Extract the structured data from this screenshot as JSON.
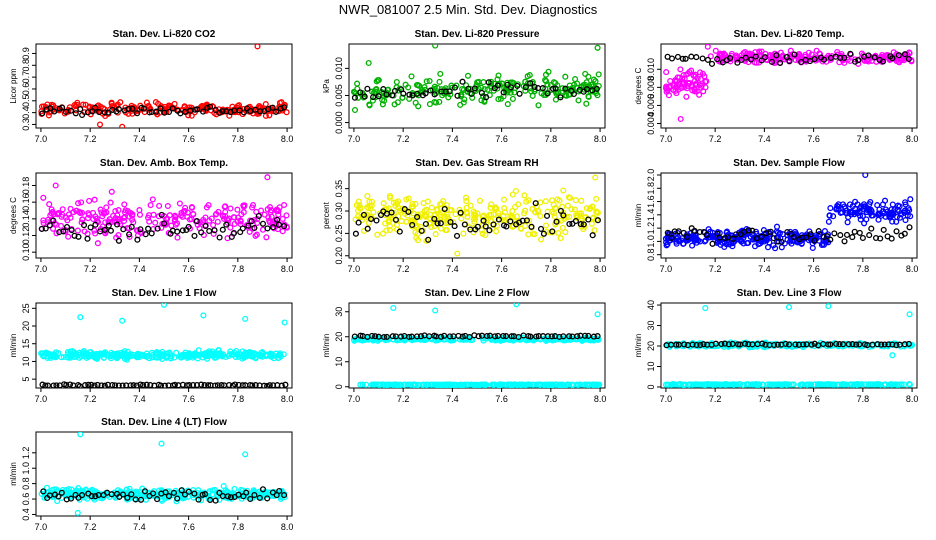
{
  "title": "NWR_081007  2.5 Min. Std. Dev. Diagnostics",
  "colors": {
    "reference": "#000000"
  },
  "chart_data": [
    {
      "type": "scatter",
      "title": "Stan. Dev. Li-820 CO2",
      "xlabel": "",
      "ylabel": "Licor ppm",
      "color": "#ff0000",
      "xlim": [
        6.98,
        8.02
      ],
      "ylim": [
        0.27,
        0.98
      ],
      "xticks": [
        "7.0",
        "7.2",
        "7.4",
        "7.6",
        "7.8",
        "8.0"
      ],
      "yticks": [
        "0.3",
        "0.4",
        "0.5",
        "0.6",
        "0.7",
        "0.8",
        "0.9"
      ],
      "bands": [
        {
          "y": 0.43,
          "spread": 0.05,
          "n": 220
        }
      ],
      "ref_band": {
        "y": 0.42,
        "spread": 0.035,
        "n": 60
      },
      "outliers": [
        {
          "x": 7.88,
          "y": 0.96
        },
        {
          "x": 7.33,
          "y": 0.28
        },
        {
          "x": 7.24,
          "y": 0.3
        }
      ]
    },
    {
      "type": "scatter",
      "title": "Stan. Dev. Li-820 Pressure",
      "xlabel": "",
      "ylabel": "kPa",
      "color": "#00b000",
      "xlim": [
        6.98,
        8.02
      ],
      "ylim": [
        -0.001,
        0.0145
      ],
      "xticks": [
        "7.0",
        "7.2",
        "7.4",
        "7.6",
        "7.8",
        "8.0"
      ],
      "yticks": [
        "0.000",
        "0.005",
        "0.010"
      ],
      "bands": [
        {
          "y": 0.005,
          "spread": 0.0025,
          "n": 240,
          "trend": 0.0018
        }
      ],
      "ref_band": {
        "y": 0.005,
        "spread": 0.0015,
        "n": 55,
        "trend": 0.0015
      },
      "outliers": [
        {
          "x": 7.33,
          "y": 0.0142
        },
        {
          "x": 7.99,
          "y": 0.0138
        },
        {
          "x": 7.06,
          "y": 0.011
        }
      ]
    },
    {
      "type": "scatter",
      "title": "Stan. Dev. Li-820 Temp.",
      "xlabel": "",
      "ylabel": "degrees C",
      "color": "#ff00ff",
      "xlim": [
        6.98,
        8.02
      ],
      "ylim": [
        0.0035,
        0.0128
      ],
      "xticks": [
        "7.0",
        "7.2",
        "7.4",
        "7.6",
        "7.8",
        "8.0"
      ],
      "yticks": [
        "0.004",
        "0.006",
        "0.008",
        "0.010"
      ],
      "bands": [
        {
          "y": 0.0113,
          "spread": 0.0006,
          "n": 220,
          "from": 7.18
        },
        {
          "y": 0.0085,
          "spread": 0.0013,
          "n": 70,
          "to": 7.17
        }
      ],
      "ref_band": {
        "y": 0.0112,
        "spread": 0.0006,
        "n": 50
      },
      "outliers": [
        {
          "x": 7.06,
          "y": 0.0045
        },
        {
          "x": 7.17,
          "y": 0.0125
        }
      ]
    },
    {
      "type": "scatter",
      "title": "Stan. Dev. Amb. Box Temp.",
      "xlabel": "",
      "ylabel": "degrees C",
      "color": "#ff00ff",
      "xlim": [
        6.98,
        8.02
      ],
      "ylim": [
        0.093,
        0.195
      ],
      "xticks": [
        "7.0",
        "7.2",
        "7.4",
        "7.6",
        "7.8",
        "8.0"
      ],
      "yticks": [
        "0.10",
        "0.12",
        "0.14",
        "0.16",
        "0.18"
      ],
      "bands": [
        {
          "y": 0.14,
          "spread": 0.022,
          "n": 260
        }
      ],
      "ref_band": {
        "y": 0.128,
        "spread": 0.012,
        "n": 60
      },
      "outliers": [
        {
          "x": 7.92,
          "y": 0.19
        },
        {
          "x": 7.06,
          "y": 0.18
        }
      ]
    },
    {
      "type": "scatter",
      "title": "Stan. Dev. Gas Stream RH",
      "xlabel": "",
      "ylabel": "percent",
      "color": "#f0f000",
      "xlim": [
        6.98,
        8.02
      ],
      "ylim": [
        0.195,
        0.385
      ],
      "xticks": [
        "7.0",
        "7.2",
        "7.4",
        "7.6",
        "7.8",
        "8.0"
      ],
      "yticks": [
        "0.20",
        "0.25",
        "0.30",
        "0.35"
      ],
      "bands": [
        {
          "y": 0.29,
          "spread": 0.045,
          "n": 300
        }
      ],
      "ref_band": {
        "y": 0.275,
        "spread": 0.03,
        "n": 60
      },
      "outliers": [
        {
          "x": 7.42,
          "y": 0.205
        },
        {
          "x": 7.98,
          "y": 0.375
        }
      ]
    },
    {
      "type": "scatter",
      "title": "Stan. Dev. Sample Flow",
      "xlabel": "",
      "ylabel": "ml/min",
      "color": "#0000ff",
      "xlim": [
        6.98,
        8.02
      ],
      "ylim": [
        0.75,
        2.03
      ],
      "xticks": [
        "7.0",
        "7.2",
        "7.4",
        "7.6",
        "7.8",
        "8.0"
      ],
      "yticks": [
        "0.8",
        "1.0",
        "1.2",
        "1.4",
        "1.6",
        "1.8",
        "2.0"
      ],
      "bands": [
        {
          "y": 1.05,
          "spread": 0.12,
          "n": 260,
          "to": 7.66
        },
        {
          "y": 1.45,
          "spread": 0.16,
          "n": 110,
          "from": 7.66
        }
      ],
      "ref_band": {
        "y": 1.1,
        "spread": 0.12,
        "n": 60
      },
      "outliers": [
        {
          "x": 7.81,
          "y": 2.0
        }
      ]
    },
    {
      "type": "scatter",
      "title": "Stan. Dev. Line 1 Flow",
      "xlabel": "",
      "ylabel": "ml/min",
      "color": "#00ffff",
      "xlim": [
        6.98,
        8.02
      ],
      "ylim": [
        2.5,
        26.5
      ],
      "xticks": [
        "7.0",
        "7.2",
        "7.4",
        "7.6",
        "7.8",
        "8.0"
      ],
      "yticks": [
        "5",
        "10",
        "15",
        "20",
        "25"
      ],
      "bands": [
        {
          "y": 11.8,
          "spread": 1.0,
          "n": 330
        }
      ],
      "ref_band": {
        "y": 3.3,
        "spread": 0.25,
        "n": 70
      },
      "outliers": [
        {
          "x": 7.16,
          "y": 22.5
        },
        {
          "x": 7.33,
          "y": 21.5
        },
        {
          "x": 7.5,
          "y": 26.0
        },
        {
          "x": 7.66,
          "y": 23.0
        },
        {
          "x": 7.83,
          "y": 22.0
        },
        {
          "x": 7.99,
          "y": 21.0
        }
      ]
    },
    {
      "type": "scatter",
      "title": "Stan. Dev. Line 2 Flow",
      "xlabel": "",
      "ylabel": "ml/min",
      "color": "#00ffff",
      "xlim": [
        6.98,
        8.02
      ],
      "ylim": [
        -0.5,
        33.5
      ],
      "xticks": [
        "7.0",
        "7.2",
        "7.4",
        "7.6",
        "7.8",
        "8.0"
      ],
      "yticks": [
        "0",
        "10",
        "20",
        "30"
      ],
      "bands": [
        {
          "y": 19.0,
          "spread": 0.6,
          "n": 260
        },
        {
          "y": 0.8,
          "spread": 0.15,
          "n": 240
        }
      ],
      "ref_band": {
        "y": 20.2,
        "spread": 0.35,
        "n": 60
      },
      "outliers": [
        {
          "x": 7.16,
          "y": 31.5
        },
        {
          "x": 7.33,
          "y": 30.5
        },
        {
          "x": 7.66,
          "y": 33.0
        },
        {
          "x": 7.99,
          "y": 29.0
        }
      ]
    },
    {
      "type": "scatter",
      "title": "Stan. Dev. Line 3 Flow",
      "xlabel": "",
      "ylabel": "ml/min",
      "color": "#00ffff",
      "xlim": [
        6.98,
        8.02
      ],
      "ylim": [
        -0.5,
        41
      ],
      "xticks": [
        "7.0",
        "7.2",
        "7.4",
        "7.6",
        "7.8",
        "8.0"
      ],
      "yticks": [
        "0",
        "10",
        "20",
        "30",
        "40"
      ],
      "bands": [
        {
          "y": 20.5,
          "spread": 1.0,
          "n": 240
        },
        {
          "y": 1.2,
          "spread": 0.2,
          "n": 240
        }
      ],
      "ref_band": {
        "y": 20.8,
        "spread": 0.45,
        "n": 60
      },
      "outliers": [
        {
          "x": 7.16,
          "y": 38.5
        },
        {
          "x": 7.5,
          "y": 39.0
        },
        {
          "x": 7.66,
          "y": 39.5
        },
        {
          "x": 7.99,
          "y": 35.5
        },
        {
          "x": 7.92,
          "y": 15.5
        }
      ]
    },
    {
      "type": "scatter",
      "title": "Stan. Dev. Line 4 (LT) Flow",
      "xlabel": "",
      "ylabel": "ml/min",
      "color": "#00ffff",
      "xlim": [
        6.98,
        8.02
      ],
      "ylim": [
        0.38,
        1.47
      ],
      "xticks": [
        "7.0",
        "7.2",
        "7.4",
        "7.6",
        "7.8",
        "8.0"
      ],
      "yticks": [
        "0.4",
        "0.6",
        "0.8",
        "1.0",
        "1.2"
      ],
      "bands": [
        {
          "y": 0.66,
          "spread": 0.07,
          "n": 320
        }
      ],
      "ref_band": {
        "y": 0.64,
        "spread": 0.08,
        "n": 60
      },
      "outliers": [
        {
          "x": 7.16,
          "y": 1.44
        },
        {
          "x": 7.49,
          "y": 1.32
        },
        {
          "x": 7.83,
          "y": 1.18
        },
        {
          "x": 7.15,
          "y": 0.42
        }
      ]
    }
  ]
}
